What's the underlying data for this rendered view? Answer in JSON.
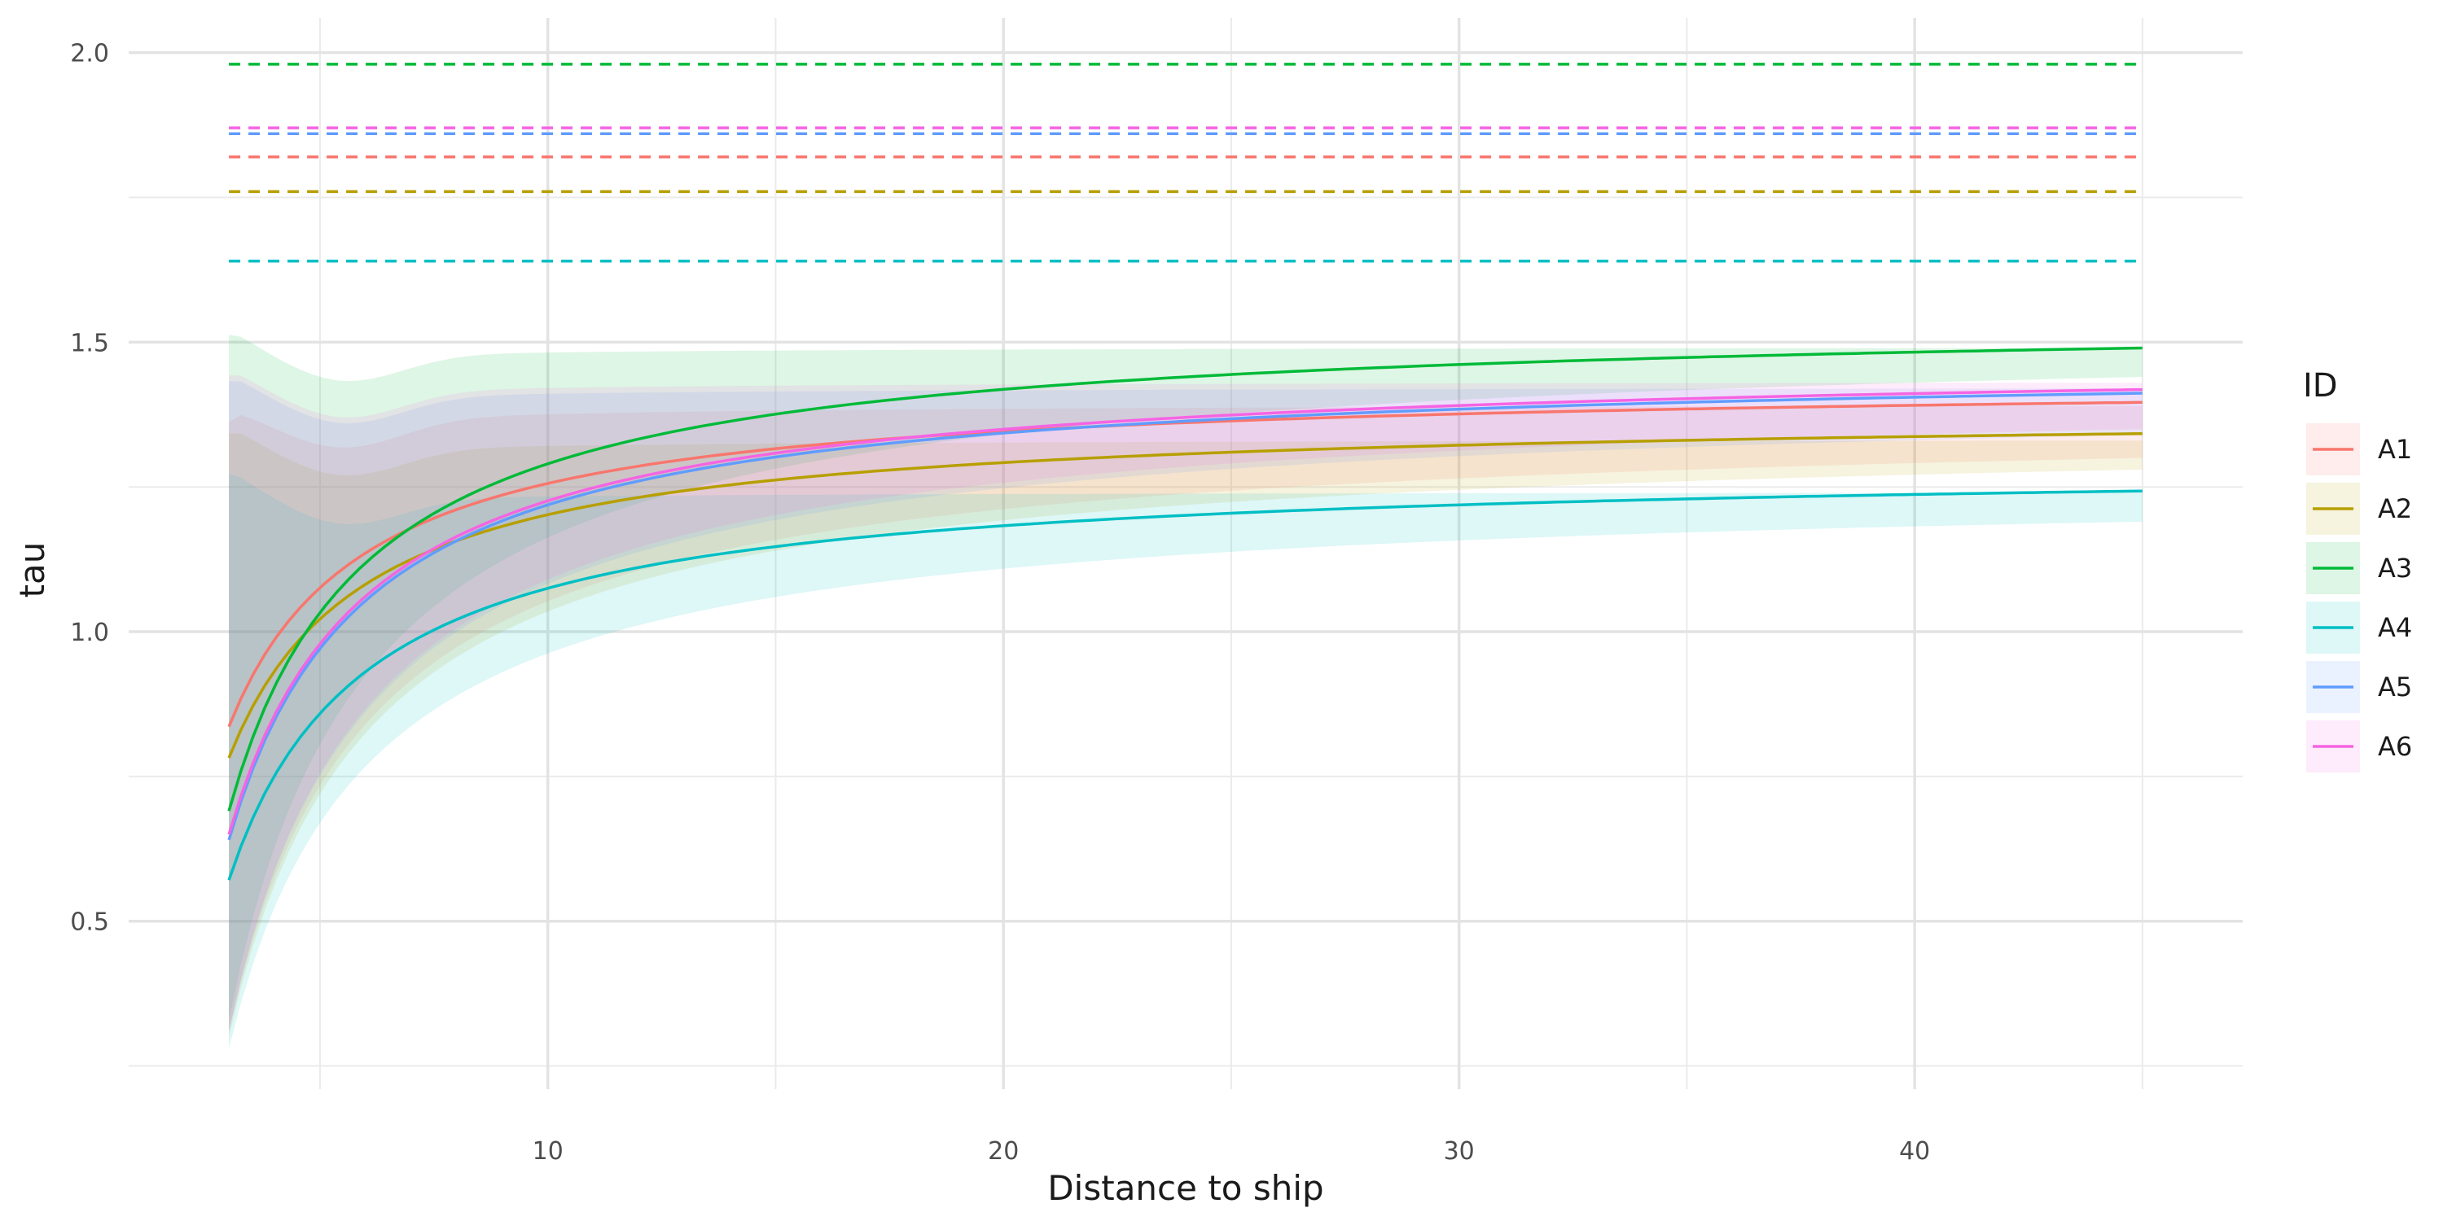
{
  "chart_data": {
    "type": "line",
    "xlabel": "Distance to ship",
    "ylabel": "tau",
    "xlim": [
      0.8,
      47.2
    ],
    "ylim": [
      0.21,
      2.06
    ],
    "x_ticks": [
      10,
      20,
      30,
      40
    ],
    "x_minor_ticks": [
      5,
      15,
      25,
      35,
      45
    ],
    "y_ticks": [
      0.5,
      1.0,
      1.5,
      2.0
    ],
    "y_tick_labels": [
      "0.5",
      "1.0",
      "1.5",
      "2.0"
    ],
    "y_minor_ticks": [
      0.25,
      0.75,
      1.25,
      1.75
    ],
    "grid": true,
    "x_range": [
      3,
      45
    ],
    "legend": {
      "title": "ID",
      "position": "right"
    },
    "curve_model": "tau(x) = asymptote - amplitude / x^exponent",
    "series": [
      {
        "name": "A1",
        "color": "#F8766D",
        "asymptote": 1.436,
        "amplitude": 1.8,
        "exponent": 1.0,
        "dashed_level": 1.82,
        "band_lower": [
          0.31,
          1.3
        ],
        "band_upper": [
          1.28,
          1.39
        ]
      },
      {
        "name": "A2",
        "color": "#B79F00",
        "asymptote": 1.382,
        "amplitude": 1.8,
        "exponent": 1.0,
        "dashed_level": 1.76,
        "band_lower": [
          0.3,
          1.28
        ],
        "band_upper": [
          1.26,
          1.33
        ]
      },
      {
        "name": "A3",
        "color": "#00BA38",
        "asymptote": 1.547,
        "amplitude": 2.57,
        "exponent": 1.0,
        "dashed_level": 1.98,
        "band_lower": [
          0.33,
          1.44
        ],
        "band_upper": [
          1.43,
          1.49
        ]
      },
      {
        "name": "A4",
        "color": "#00BFC4",
        "asymptote": 1.291,
        "amplitude": 2.16,
        "exponent": 1.0,
        "dashed_level": 1.64,
        "band_lower": [
          0.28,
          1.19
        ],
        "band_upper": [
          1.19,
          1.24
        ]
      },
      {
        "name": "A5",
        "color": "#619CFF",
        "asymptote": 1.467,
        "amplitude": 2.48,
        "exponent": 1.0,
        "dashed_level": 1.86,
        "band_lower": [
          0.31,
          1.34
        ],
        "band_upper": [
          1.35,
          1.42
        ]
      },
      {
        "name": "A6",
        "color": "#F564E3",
        "asymptote": 1.473,
        "amplitude": 2.47,
        "exponent": 1.0,
        "dashed_level": 1.87,
        "band_lower": [
          0.31,
          1.35
        ],
        "band_upper": [
          1.36,
          1.43
        ]
      }
    ]
  }
}
